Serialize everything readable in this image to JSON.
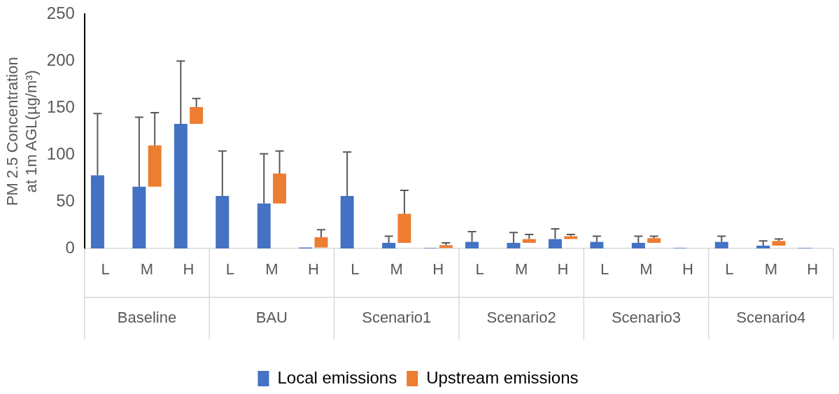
{
  "chart_data": {
    "type": "bar",
    "ylabel": "PM 2.5 Concentration at 1m AGL(µg/m³)",
    "categories": [
      "L",
      "M",
      "H",
      "L",
      "M",
      "H",
      "L",
      "M",
      "H",
      "L",
      "M",
      "H",
      "L",
      "M",
      "H",
      "L",
      "M",
      "H"
    ],
    "annotations": [
      "Baseline",
      "BAU",
      "Scenario1",
      "Scenario2",
      "Scenario3",
      "Scenario4"
    ],
    "series": [
      {
        "name": "Local emissions",
        "color": "#4472c4",
        "values": [
          78,
          66,
          133,
          56,
          48,
          1,
          56,
          6,
          0.5,
          7,
          6,
          10,
          7,
          6,
          0.5,
          7,
          3,
          0.5
        ],
        "errors": [
          [
            78,
            144
          ],
          [
            66,
            140
          ],
          [
            133,
            200
          ],
          [
            56,
            104
          ],
          [
            48,
            101
          ],
          null,
          [
            56,
            103
          ],
          [
            6,
            13
          ],
          null,
          [
            7,
            18
          ],
          [
            6,
            17
          ],
          [
            10,
            21
          ],
          [
            7,
            13
          ],
          [
            6,
            13
          ],
          null,
          [
            7,
            13
          ],
          [
            3,
            8
          ],
          null
        ]
      },
      {
        "name": "Upstream emissions",
        "color": "#ed7d31",
        "base": [
          null,
          66,
          133,
          null,
          48,
          1,
          null,
          6,
          0.5,
          null,
          6,
          10,
          null,
          6,
          null,
          null,
          3,
          null
        ],
        "values": [
          null,
          44,
          18,
          null,
          32,
          11,
          null,
          31,
          3,
          null,
          4,
          3,
          null,
          5,
          null,
          null,
          5,
          null
        ],
        "errors": [
          null,
          [
            110,
            145
          ],
          [
            151,
            160
          ],
          null,
          [
            80,
            104
          ],
          [
            12,
            20
          ],
          null,
          [
            37,
            62
          ],
          [
            3.5,
            6
          ],
          null,
          [
            10,
            15
          ],
          [
            13,
            15
          ],
          null,
          [
            11,
            13
          ],
          null,
          null,
          [
            8,
            10
          ],
          null
        ]
      }
    ],
    "ylim": [
      0,
      250
    ],
    "yticks": [
      0,
      50,
      100,
      150,
      200,
      250
    ],
    "grid": false,
    "legend": "bottom"
  }
}
